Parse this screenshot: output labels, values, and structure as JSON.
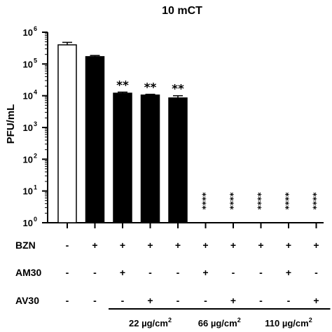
{
  "chart_data": {
    "type": "bar",
    "title": "10 mCT",
    "ylabel": "PFU/mL",
    "yscale": "log",
    "ylim": [
      1,
      1000000
    ],
    "y_ticks": [
      {
        "base": "10",
        "exp": "0"
      },
      {
        "base": "10",
        "exp": "1"
      },
      {
        "base": "10",
        "exp": "2"
      },
      {
        "base": "10",
        "exp": "3"
      },
      {
        "base": "10",
        "exp": "4"
      },
      {
        "base": "10",
        "exp": "5"
      },
      {
        "base": "10",
        "exp": "6"
      }
    ],
    "bars": [
      {
        "value": 400000,
        "error": 80000,
        "fill": "#ffffff",
        "sig": ""
      },
      {
        "value": 170000,
        "error": 15000,
        "fill": "#000000",
        "sig": ""
      },
      {
        "value": 12000,
        "error": 1000,
        "fill": "#000000",
        "sig": "**"
      },
      {
        "value": 10500,
        "error": 600,
        "fill": "#000000",
        "sig": "**"
      },
      {
        "value": 8500,
        "error": 1500,
        "fill": "#000000",
        "sig": "**"
      },
      {
        "value": 1,
        "error": 0,
        "fill": "#000000",
        "sig": "****"
      },
      {
        "value": 1,
        "error": 0,
        "fill": "#000000",
        "sig": "****"
      },
      {
        "value": 1,
        "error": 0,
        "fill": "#000000",
        "sig": "****"
      },
      {
        "value": 1,
        "error": 0,
        "fill": "#000000",
        "sig": "****"
      },
      {
        "value": 1,
        "error": 0,
        "fill": "#000000",
        "sig": "****"
      }
    ],
    "treatment_rows": [
      {
        "label": "BZN",
        "signs": [
          "-",
          "+",
          "+",
          "+",
          "+",
          "+",
          "+",
          "+",
          "+",
          "+"
        ]
      },
      {
        "label": "AM30",
        "signs": [
          "-",
          "-",
          "+",
          "-",
          "-",
          "+",
          "-",
          "-",
          "+",
          "-"
        ]
      },
      {
        "label": "AV30",
        "signs": [
          "-",
          "-",
          "-",
          "+",
          "-",
          "-",
          "+",
          "-",
          "-",
          "+"
        ]
      }
    ],
    "groups": [
      {
        "label": "22 µg/cm",
        "sup": "2",
        "from": 2,
        "to": 4
      },
      {
        "label": "66 µg/cm",
        "sup": "2",
        "from": 5,
        "to": 6
      },
      {
        "label": "110 µg/cm",
        "sup": "2",
        "from": 7,
        "to": 9
      }
    ],
    "grid": false,
    "legend": "none"
  }
}
